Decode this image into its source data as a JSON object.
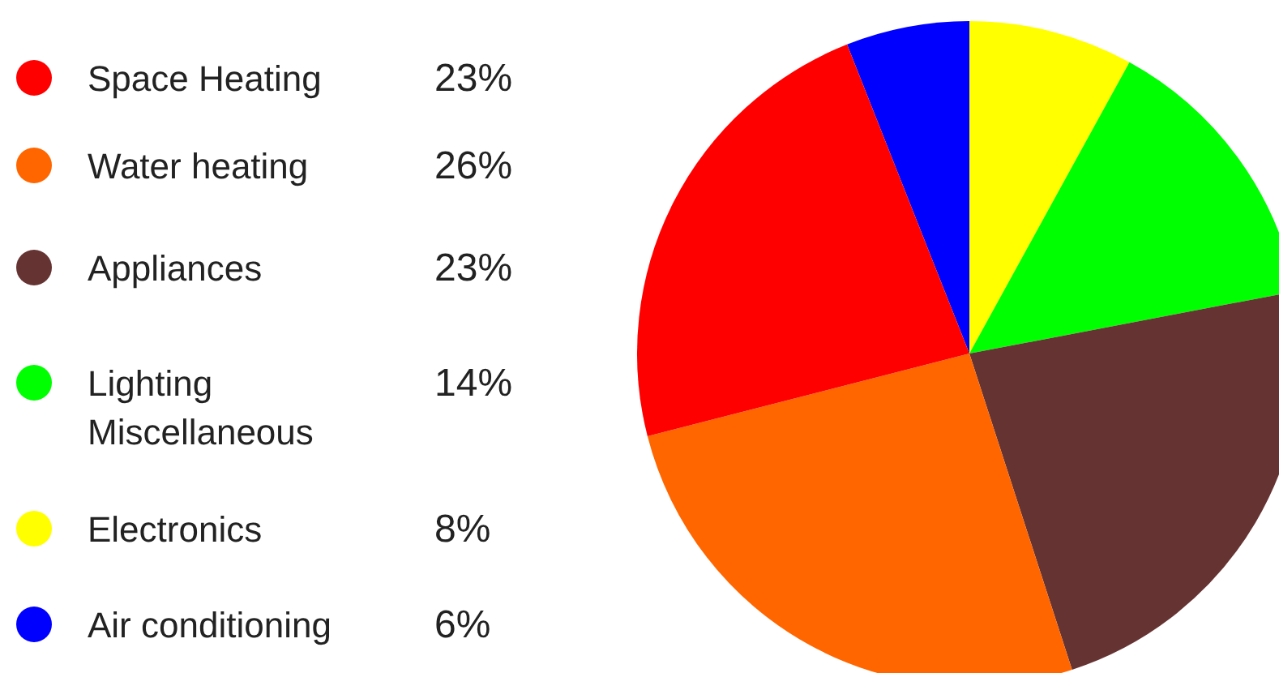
{
  "chart_data": {
    "type": "pie",
    "categories": [
      "Space Heating",
      "Water heating",
      "Appliances",
      "Lighting Miscellaneous",
      "Electronics",
      "Air conditioning"
    ],
    "values": [
      23,
      26,
      23,
      14,
      8,
      6
    ],
    "value_labels": [
      "23%",
      "26%",
      "23%",
      "14%",
      "8%",
      "6%"
    ],
    "colors": [
      "#ff0000",
      "#ff6600",
      "#663333",
      "#00ff00",
      "#ffff00",
      "#0000ff"
    ],
    "legend": "left"
  }
}
